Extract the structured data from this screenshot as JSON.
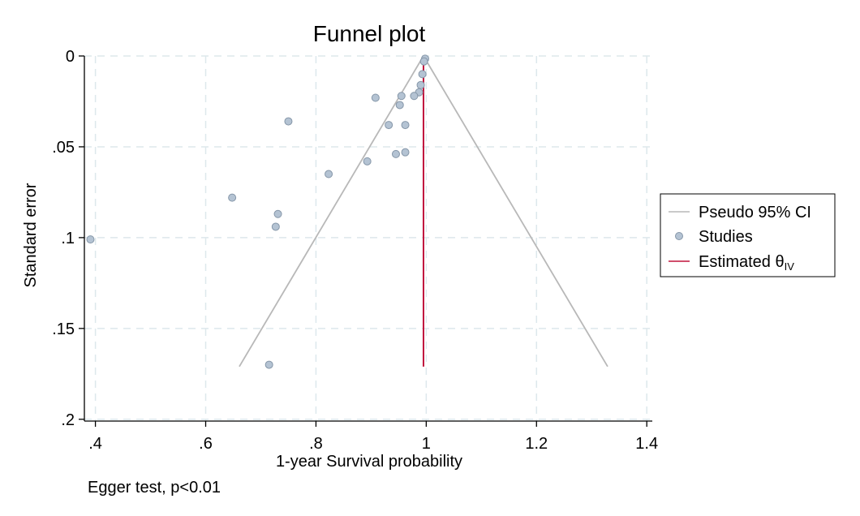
{
  "chart_data": {
    "type": "scatter",
    "title": "Funnel plot",
    "xlabel": "1-year Survival probability",
    "ylabel": "Standard error",
    "xlim": [
      0.38,
      1.41
    ],
    "ylim": [
      0.201,
      0
    ],
    "y_reversed": true,
    "xticks": [
      0.4,
      0.6,
      0.8,
      1.0,
      1.2,
      1.4
    ],
    "xtick_labels": [
      ".4",
      ".6",
      ".8",
      "1",
      "1.2",
      "1.4"
    ],
    "yticks": [
      0,
      0.05,
      0.1,
      0.15,
      0.2
    ],
    "ytick_labels": [
      "0",
      ".05",
      ".1",
      ".15",
      ".2"
    ],
    "grid": true,
    "estimate": 0.995,
    "ci_lines": {
      "apex": [
        0.995,
        0
      ],
      "left_end": [
        0.661,
        0.171
      ],
      "right_end": [
        1.329,
        0.171
      ]
    },
    "estimate_line": {
      "x": 0.995,
      "y_range": [
        0,
        0.171
      ]
    },
    "studies": [
      {
        "x": 0.998,
        "y": 0.0015
      },
      {
        "x": 0.996,
        "y": 0.003
      },
      {
        "x": 0.993,
        "y": 0.01
      },
      {
        "x": 0.99,
        "y": 0.016
      },
      {
        "x": 0.987,
        "y": 0.02
      },
      {
        "x": 0.978,
        "y": 0.022
      },
      {
        "x": 0.955,
        "y": 0.022
      },
      {
        "x": 0.908,
        "y": 0.023
      },
      {
        "x": 0.952,
        "y": 0.027
      },
      {
        "x": 0.75,
        "y": 0.036
      },
      {
        "x": 0.932,
        "y": 0.038
      },
      {
        "x": 0.962,
        "y": 0.038
      },
      {
        "x": 0.945,
        "y": 0.054
      },
      {
        "x": 0.962,
        "y": 0.053
      },
      {
        "x": 0.893,
        "y": 0.058
      },
      {
        "x": 0.823,
        "y": 0.065
      },
      {
        "x": 0.648,
        "y": 0.078
      },
      {
        "x": 0.731,
        "y": 0.087
      },
      {
        "x": 0.727,
        "y": 0.094
      },
      {
        "x": 0.391,
        "y": 0.101
      },
      {
        "x": 0.715,
        "y": 0.17
      }
    ],
    "legend": {
      "placement": "right",
      "entries": [
        {
          "label": "Pseudo 95% CI",
          "kind": "line",
          "color": "#b8b8b8"
        },
        {
          "label": "Studies",
          "kind": "marker",
          "color": "#b4c3d3"
        },
        {
          "label": "Estimated θ",
          "subscript": "IV",
          "kind": "line",
          "color": "#c0143c"
        }
      ]
    },
    "colors": {
      "ci_line": "#b8b8b8",
      "estimate_line": "#c0143c",
      "marker_fill": "#b4c3d3",
      "marker_edge": "#8596a8"
    }
  },
  "note": "Egger test, p<0.01"
}
